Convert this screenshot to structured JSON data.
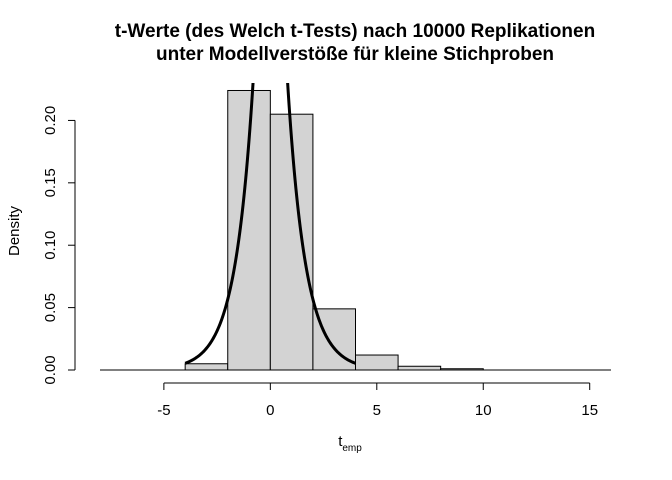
{
  "chart_data": {
    "type": "histogram",
    "title_lines": [
      "t-Werte (des Welch t-Tests) nach 10000 Replikationen",
      "unter Modellverstöße für kleine Stichproben"
    ],
    "xlabel_main": "t",
    "xlabel_sub": "emp",
    "ylabel": "Density",
    "xticks": [
      "-5",
      "0",
      "5",
      "10",
      "15"
    ],
    "yticks": [
      "0.00",
      "0.05",
      "0.10",
      "0.15",
      "0.20"
    ],
    "xlim": [
      -8,
      16
    ],
    "ylim": [
      0,
      0.23
    ],
    "bins": [
      {
        "x0": -4,
        "x1": -2,
        "density": 0.005
      },
      {
        "x0": -2,
        "x1": 0,
        "density": 0.224
      },
      {
        "x0": 0,
        "x1": 2,
        "density": 0.205
      },
      {
        "x0": 2,
        "x1": 4,
        "density": 0.049
      },
      {
        "x0": 4,
        "x1": 6,
        "density": 0.012
      },
      {
        "x0": 6,
        "x1": 8,
        "density": 0.003
      },
      {
        "x0": 8,
        "x1": 10,
        "density": 0.001
      },
      {
        "x0": 10,
        "x1": 12,
        "density": 0.0
      },
      {
        "x0": 12,
        "x1": 14,
        "density": 0.0
      },
      {
        "x0": 14,
        "x1": 16,
        "density": 0.0
      }
    ],
    "overlay_curve": {
      "type": "density",
      "xmin": -4,
      "xmax": 4,
      "color": "#000000"
    },
    "bar_fill": "#d3d3d3",
    "bar_stroke": "#000000"
  }
}
